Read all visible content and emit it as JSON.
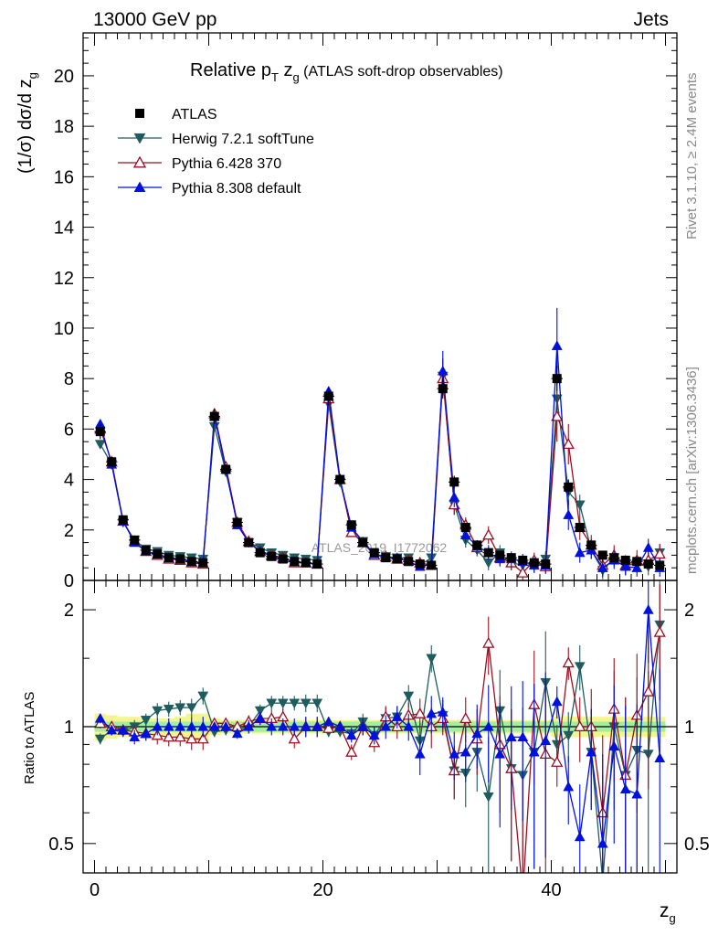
{
  "header": {
    "energy_label": "13000 GeV pp",
    "process_label": "Jets"
  },
  "side_labels": {
    "rivet": "Rivet 3.1.10, ≥ 2.4M events",
    "mcplots": "mcplots.cern.ch [arXiv:1306.3436]"
  },
  "watermark": "ATLAS_2019_I1772062",
  "colors": {
    "data": "#000000",
    "herwig": "#1f5c60",
    "pythia6": "#9a1020",
    "pythia8": "#0010dd",
    "band_inner": "#a0f0a0",
    "band_outer": "#f5f590"
  },
  "chart_data": [
    {
      "type": "line",
      "title": "Relative p_T z_g (ATLAS soft-drop observables)",
      "title_parts": {
        "pre": "Relative p",
        "sub": "T",
        "mid": " z",
        "sub2": "g",
        "post": " (ATLAS soft-drop observables)"
      },
      "ylabel": "(1/σ) dσ/d z_g",
      "ylabel_parts": {
        "main": "(1/σ) dσ/d z",
        "sub": "g"
      },
      "xlim": [
        -1,
        51
      ],
      "ylim": [
        0,
        21.7
      ],
      "yticks": [
        0,
        2,
        4,
        6,
        8,
        10,
        12,
        14,
        16,
        18,
        20
      ],
      "grid": false,
      "legend_position": "top-left",
      "x": [
        0.5,
        1.5,
        2.5,
        3.5,
        4.5,
        5.5,
        6.5,
        7.5,
        8.5,
        9.5,
        10.5,
        11.5,
        12.5,
        13.5,
        14.5,
        15.5,
        16.5,
        17.5,
        18.5,
        19.5,
        20.5,
        21.5,
        22.5,
        23.5,
        24.5,
        25.5,
        26.5,
        27.5,
        28.5,
        29.5,
        30.5,
        31.5,
        32.5,
        33.5,
        34.5,
        35.5,
        36.5,
        37.5,
        38.5,
        39.5,
        40.5,
        41.5,
        42.5,
        43.5,
        44.5,
        45.5,
        46.5,
        47.5,
        48.5,
        49.5
      ],
      "series": [
        {
          "name": "ATLAS",
          "marker": "square",
          "color": "#000000",
          "values": [
            5.9,
            4.7,
            2.4,
            1.6,
            1.2,
            1.05,
            0.9,
            0.85,
            0.75,
            0.7,
            6.5,
            4.4,
            2.3,
            1.5,
            1.1,
            0.95,
            0.85,
            0.75,
            0.7,
            0.65,
            7.3,
            4.0,
            2.2,
            1.5,
            1.1,
            0.9,
            0.85,
            0.75,
            0.65,
            0.6,
            7.6,
            3.9,
            2.1,
            1.4,
            1.1,
            1.0,
            0.9,
            0.8,
            0.7,
            0.65,
            8.0,
            3.7,
            2.1,
            1.4,
            1.0,
            0.9,
            0.8,
            0.75,
            0.65,
            0.6
          ],
          "errors": [
            0.3,
            0.2,
            0.12,
            0.08,
            0.06,
            0.05,
            0.05,
            0.05,
            0.05,
            0.05,
            0.3,
            0.2,
            0.12,
            0.08,
            0.06,
            0.05,
            0.05,
            0.05,
            0.05,
            0.05,
            0.35,
            0.2,
            0.12,
            0.08,
            0.06,
            0.05,
            0.05,
            0.05,
            0.05,
            0.05,
            0.4,
            0.25,
            0.15,
            0.1,
            0.08,
            0.07,
            0.07,
            0.07,
            0.06,
            0.06,
            0.5,
            0.3,
            0.18,
            0.12,
            0.1,
            0.1,
            0.1,
            0.1,
            0.1,
            0.1
          ]
        },
        {
          "name": "Herwig 7.2.1 softTune",
          "marker": "triangle-down",
          "color": "#1f5c60",
          "values": [
            5.4,
            4.6,
            2.3,
            1.6,
            1.25,
            1.15,
            1.0,
            0.95,
            0.9,
            0.85,
            6.1,
            4.3,
            2.3,
            1.5,
            1.3,
            1.1,
            1.0,
            0.9,
            0.85,
            0.8,
            7.0,
            3.9,
            2.1,
            1.55,
            1.05,
            0.95,
            0.9,
            0.9,
            0.6,
            0.9,
            8.1,
            3.0,
            1.6,
            1.2,
            0.7,
            1.1,
            0.7,
            0.6,
            0.6,
            0.85,
            7.2,
            3.5,
            3.0,
            1.2,
            0.4,
            0.9,
            0.6,
            0.65,
            0.55,
            1.1
          ],
          "errors": [
            0.1,
            0.1,
            0.08,
            0.06,
            0.05,
            0.05,
            0.05,
            0.05,
            0.05,
            0.05,
            0.1,
            0.1,
            0.08,
            0.06,
            0.05,
            0.05,
            0.05,
            0.05,
            0.05,
            0.05,
            0.15,
            0.1,
            0.08,
            0.07,
            0.06,
            0.06,
            0.06,
            0.06,
            0.06,
            0.06,
            0.7,
            0.4,
            0.3,
            0.25,
            0.3,
            0.3,
            0.3,
            0.3,
            0.3,
            0.3,
            0.9,
            0.5,
            0.4,
            0.35,
            0.35,
            0.35,
            0.35,
            0.35,
            0.35,
            0.35
          ]
        },
        {
          "name": "Pythia 6.428 370",
          "marker": "triangle-open",
          "color": "#9a1020",
          "values": [
            6.0,
            4.7,
            2.35,
            1.55,
            1.15,
            1.0,
            0.85,
            0.8,
            0.7,
            0.65,
            6.6,
            4.5,
            2.3,
            1.55,
            1.15,
            1.0,
            0.9,
            0.7,
            0.7,
            0.65,
            7.2,
            4.0,
            1.9,
            1.5,
            1.0,
            0.95,
            0.85,
            0.8,
            0.7,
            0.6,
            8.0,
            3.0,
            2.2,
            1.3,
            1.8,
            0.9,
            0.7,
            0.3,
            0.8,
            0.55,
            6.5,
            5.4,
            2.1,
            1.4,
            0.6,
            1.0,
            0.6,
            0.8,
            0.8,
            1.05
          ],
          "errors": [
            0.1,
            0.1,
            0.08,
            0.06,
            0.05,
            0.05,
            0.05,
            0.05,
            0.05,
            0.05,
            0.1,
            0.1,
            0.08,
            0.06,
            0.05,
            0.05,
            0.05,
            0.05,
            0.05,
            0.05,
            0.15,
            0.1,
            0.08,
            0.07,
            0.06,
            0.06,
            0.06,
            0.06,
            0.06,
            0.06,
            0.7,
            0.4,
            0.3,
            0.25,
            0.35,
            0.3,
            0.3,
            0.3,
            0.3,
            0.3,
            1.0,
            0.8,
            0.5,
            0.4,
            0.4,
            0.4,
            0.4,
            0.4,
            0.4,
            0.4
          ]
        },
        {
          "name": "Pythia 8.308 default",
          "marker": "triangle-up",
          "color": "#0010dd",
          "values": [
            6.2,
            4.6,
            2.35,
            1.5,
            1.15,
            1.05,
            0.9,
            0.85,
            0.75,
            0.7,
            6.5,
            4.4,
            2.2,
            1.5,
            1.15,
            0.95,
            0.85,
            0.75,
            0.7,
            0.65,
            7.5,
            4.0,
            2.1,
            1.5,
            1.05,
            0.9,
            0.9,
            0.75,
            0.55,
            0.65,
            8.3,
            3.3,
            1.8,
            1.35,
            1.1,
            0.85,
            0.85,
            0.75,
            0.6,
            0.6,
            9.3,
            2.6,
            1.1,
            1.2,
            0.5,
            0.8,
            0.55,
            0.5,
            1.3,
            0.5
          ],
          "errors": [
            0.1,
            0.1,
            0.08,
            0.06,
            0.05,
            0.05,
            0.05,
            0.05,
            0.05,
            0.05,
            0.1,
            0.1,
            0.08,
            0.06,
            0.05,
            0.05,
            0.05,
            0.05,
            0.05,
            0.05,
            0.15,
            0.1,
            0.08,
            0.07,
            0.06,
            0.06,
            0.06,
            0.06,
            0.06,
            0.06,
            0.8,
            0.4,
            0.3,
            0.25,
            0.3,
            0.3,
            0.3,
            0.3,
            0.3,
            0.3,
            1.5,
            0.6,
            0.4,
            0.35,
            0.35,
            0.35,
            0.35,
            0.35,
            0.35,
            0.35
          ]
        }
      ]
    },
    {
      "type": "line",
      "ylabel": "Ratio to ATLAS",
      "xlabel": "z_g",
      "xlabel_parts": {
        "main": "z",
        "sub": "g"
      },
      "xlim": [
        -1,
        51
      ],
      "ylim": [
        0.42,
        2.38
      ],
      "ylog": true,
      "yticks_major": [
        0.5,
        1,
        2
      ],
      "yticks_minor": [
        0.6,
        0.7,
        0.8,
        0.9,
        1.5
      ],
      "xticks": [
        0,
        20,
        40
      ],
      "reference_line": 1,
      "bands": {
        "inner": [
          0.03,
          0.03,
          0.03,
          0.03,
          0.03,
          0.03,
          0.03,
          0.03,
          0.03,
          0.03,
          0.03,
          0.03,
          0.03,
          0.03,
          0.03,
          0.03,
          0.03,
          0.03,
          0.03,
          0.03,
          0.03,
          0.03,
          0.03,
          0.03,
          0.03,
          0.03,
          0.03,
          0.03,
          0.03,
          0.03,
          0.03,
          0.03,
          0.03,
          0.03,
          0.03,
          0.03,
          0.03,
          0.03,
          0.03,
          0.03,
          0.03,
          0.03,
          0.03,
          0.03,
          0.03,
          0.03,
          0.03,
          0.03,
          0.03,
          0.03
        ],
        "outer": [
          0.08,
          0.07,
          0.06,
          0.06,
          0.05,
          0.05,
          0.05,
          0.06,
          0.08,
          0.08,
          0.05,
          0.04,
          0.04,
          0.04,
          0.04,
          0.04,
          0.04,
          0.04,
          0.04,
          0.04,
          0.04,
          0.04,
          0.04,
          0.04,
          0.04,
          0.04,
          0.04,
          0.04,
          0.04,
          0.04,
          0.04,
          0.04,
          0.04,
          0.04,
          0.04,
          0.04,
          0.04,
          0.04,
          0.04,
          0.04,
          0.06,
          0.06,
          0.06,
          0.06,
          0.06,
          0.06,
          0.06,
          0.06,
          0.06,
          0.06
        ]
      },
      "series": [
        {
          "name": "Herwig 7.2.1 softTune",
          "color": "#1f5c60",
          "marker": "triangle-down",
          "values": [
            0.93,
            0.98,
            0.97,
            1.0,
            1.04,
            1.1,
            1.11,
            1.12,
            1.12,
            1.2,
            0.97,
            0.98,
            0.98,
            1.0,
            1.1,
            1.15,
            1.15,
            1.15,
            1.15,
            1.15,
            0.97,
            0.97,
            0.96,
            1.03,
            0.95,
            1.05,
            1.06,
            1.2,
            0.92,
            1.5,
            1.07,
            0.77,
            0.76,
            0.86,
            0.66,
            1.1,
            0.78,
            0.75,
            0.86,
            1.3,
            0.9,
            0.95,
            1.43,
            0.86,
            0.4,
            1.0,
            0.75,
            0.87,
            0.85,
            1.83
          ],
          "errors": [
            0.03,
            0.03,
            0.03,
            0.04,
            0.04,
            0.05,
            0.05,
            0.05,
            0.06,
            0.06,
            0.03,
            0.03,
            0.03,
            0.04,
            0.04,
            0.05,
            0.05,
            0.05,
            0.06,
            0.06,
            0.03,
            0.03,
            0.04,
            0.05,
            0.05,
            0.07,
            0.07,
            0.08,
            0.1,
            0.12,
            0.1,
            0.12,
            0.14,
            0.18,
            0.28,
            0.3,
            0.33,
            0.37,
            0.43,
            0.46,
            0.11,
            0.14,
            0.19,
            0.25,
            0.35,
            0.39,
            0.44,
            0.47,
            0.54,
            0.58
          ]
        },
        {
          "name": "Pythia 6.428 370",
          "color": "#9a1020",
          "marker": "triangle-open",
          "values": [
            1.02,
            1.0,
            0.98,
            0.97,
            0.96,
            0.95,
            0.94,
            0.94,
            0.93,
            0.93,
            1.02,
            1.02,
            1.0,
            1.03,
            1.05,
            1.05,
            1.06,
            0.93,
            1.0,
            1.0,
            0.99,
            1.0,
            0.86,
            1.0,
            0.91,
            1.06,
            1.0,
            1.07,
            1.08,
            1.0,
            1.05,
            0.77,
            1.05,
            0.93,
            1.64,
            0.9,
            0.78,
            0.37,
            1.14,
            0.85,
            0.81,
            1.46,
            1.0,
            1.0,
            0.6,
            1.11,
            0.75,
            1.07,
            1.23,
            1.75
          ],
          "errors": [
            0.03,
            0.03,
            0.03,
            0.04,
            0.04,
            0.05,
            0.05,
            0.05,
            0.06,
            0.06,
            0.03,
            0.03,
            0.03,
            0.04,
            0.04,
            0.05,
            0.05,
            0.05,
            0.06,
            0.06,
            0.03,
            0.03,
            0.04,
            0.05,
            0.05,
            0.07,
            0.07,
            0.08,
            0.1,
            0.12,
            0.1,
            0.12,
            0.14,
            0.18,
            0.28,
            0.3,
            0.33,
            0.37,
            0.43,
            0.46,
            0.11,
            0.14,
            0.19,
            0.25,
            0.35,
            0.39,
            0.44,
            0.47,
            0.54,
            0.58
          ]
        },
        {
          "name": "Pythia 8.308 default",
          "color": "#0010dd",
          "marker": "triangle-up",
          "values": [
            1.05,
            0.98,
            0.98,
            0.94,
            0.96,
            1.0,
            1.0,
            1.0,
            1.0,
            1.0,
            1.0,
            1.0,
            0.96,
            1.0,
            1.05,
            1.0,
            1.0,
            1.0,
            1.0,
            1.0,
            1.03,
            1.0,
            0.95,
            1.0,
            0.95,
            1.0,
            1.06,
            1.0,
            0.85,
            1.08,
            1.09,
            0.85,
            0.86,
            0.96,
            1.0,
            0.85,
            0.94,
            0.94,
            0.86,
            0.92,
            1.16,
            0.7,
            0.52,
            0.86,
            0.5,
            0.89,
            0.69,
            0.67,
            2.0,
            0.83
          ],
          "errors": [
            0.03,
            0.03,
            0.03,
            0.04,
            0.04,
            0.05,
            0.05,
            0.05,
            0.06,
            0.06,
            0.03,
            0.03,
            0.03,
            0.04,
            0.04,
            0.05,
            0.05,
            0.05,
            0.06,
            0.06,
            0.03,
            0.03,
            0.04,
            0.05,
            0.05,
            0.07,
            0.07,
            0.08,
            0.1,
            0.12,
            0.1,
            0.12,
            0.14,
            0.18,
            0.28,
            0.3,
            0.33,
            0.37,
            0.43,
            0.46,
            0.11,
            0.14,
            0.19,
            0.25,
            0.35,
            0.39,
            0.44,
            0.47,
            0.54,
            0.58
          ]
        }
      ]
    }
  ]
}
